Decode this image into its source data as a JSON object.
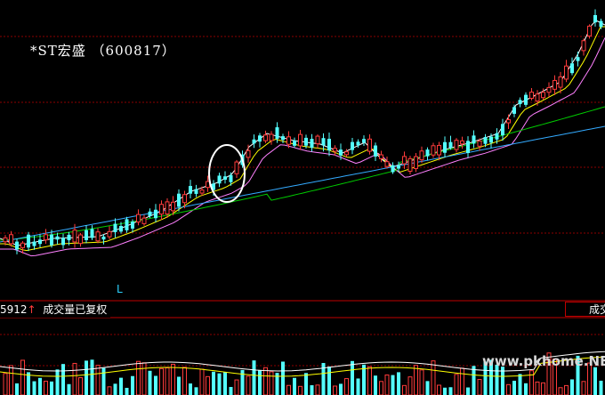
{
  "stock": {
    "title": "*ST宏盛 （600817）"
  },
  "volume_panel": {
    "left_number": "5912",
    "arrow": "↑",
    "label": "成交量已复权",
    "right_label": "成交"
  },
  "marker": "L",
  "watermark": "www.pkhome.NET",
  "colors": {
    "background": "#000000",
    "up_candle": "#ff3b3b",
    "down_candle": "#54ffff",
    "grid": "#8b0000",
    "ma_white": "#ffffff",
    "ma_yellow": "#ffff00",
    "ma_magenta": "#ff80ff",
    "ma_green": "#00cc00",
    "ma_blue": "#33aaff"
  }
}
